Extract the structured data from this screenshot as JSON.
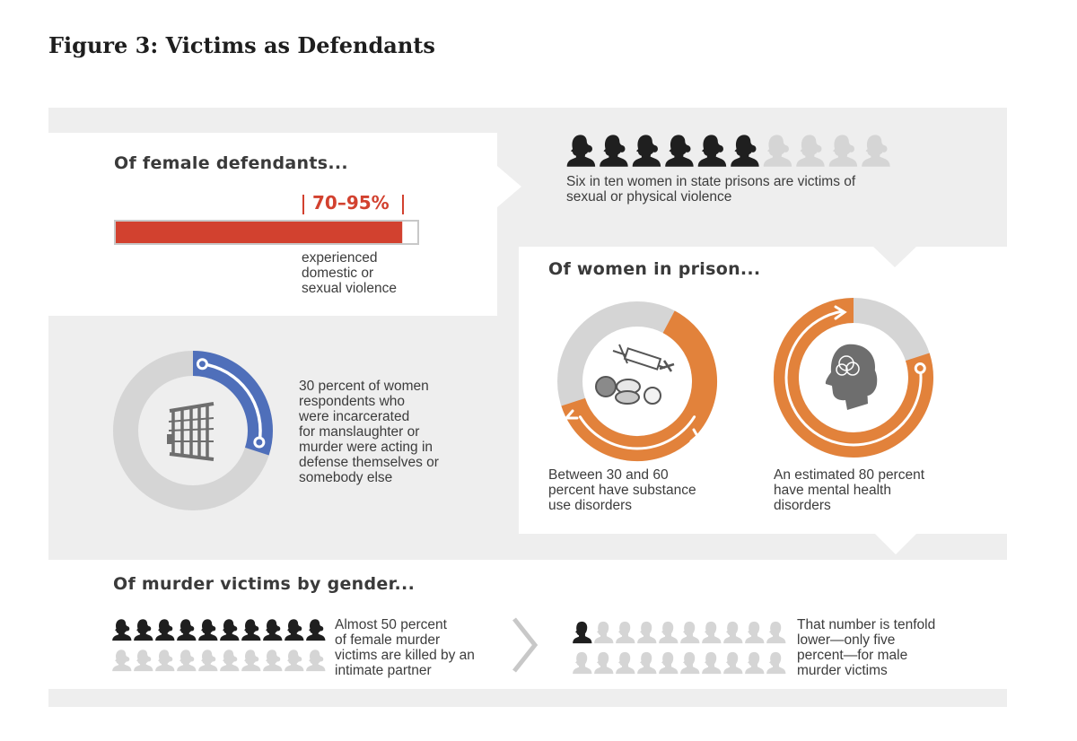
{
  "figure_title": "Figure 3: Victims as Defendants",
  "colors": {
    "red": "#d2412f",
    "blue": "#4f6fba",
    "orange": "#e2823b",
    "light_gray": "#d5d5d5",
    "panel_bg": "#eeeeee",
    "dark": "#1f1f1f",
    "icon_gray": "#6e6e6e"
  },
  "female_defendants": {
    "title": "Of female defendants...",
    "percent_label": "70–95%",
    "description_lines": [
      "experienced",
      "domestic or",
      "sexual violence"
    ]
  },
  "state_prisons": {
    "text_lines": [
      "Six in ten women in state prisons are victims of",
      "sexual or physical violence"
    ]
  },
  "self_defense": {
    "text_lines": [
      "30 percent of women",
      "respondents who",
      "were incarcerated",
      "for manslaughter or",
      "murder were acting in",
      "defense themselves or",
      "somebody else"
    ],
    "icon": "prison-bars-icon"
  },
  "women_in_prison": {
    "title": "Of women in prison...",
    "substance": {
      "text_lines": [
        "Between 30 and 60",
        "percent have substance",
        "use disorders"
      ],
      "icon": "syringe-pills-icon"
    },
    "mental": {
      "text_lines": [
        "An estimated 80 percent",
        "have mental health",
        "disorders"
      ],
      "icon": "head-profile-icon"
    }
  },
  "murder_victims": {
    "title": "Of murder victims by gender...",
    "female_text_lines": [
      "Almost 50 percent",
      "of female murder",
      "victims are killed by an",
      "intimate partner"
    ],
    "male_text_lines": [
      "That number is tenfold",
      "lower—only five",
      "percent—for male",
      "murder victims"
    ]
  },
  "chart_data": [
    {
      "type": "bar",
      "values": [
        70,
        95
      ],
      "unit": "percent",
      "ylim": [
        0,
        100
      ]
    },
    {
      "type": "pictograph",
      "filled": 6,
      "total": 10
    },
    {
      "type": "pie",
      "values": [
        30,
        70
      ],
      "colors": [
        "#4f6fba",
        "#d5d5d5"
      ]
    },
    {
      "type": "pie",
      "values": [
        30,
        60
      ],
      "colors": [
        "#e2823b",
        "#d5d5d5"
      ]
    },
    {
      "type": "pie",
      "values": [
        80,
        20
      ],
      "colors": [
        "#e2823b",
        "#d5d5d5"
      ]
    },
    {
      "type": "pictograph",
      "filled": 10,
      "total": 20
    },
    {
      "type": "pictograph",
      "filled": 1,
      "total": 20
    }
  ]
}
